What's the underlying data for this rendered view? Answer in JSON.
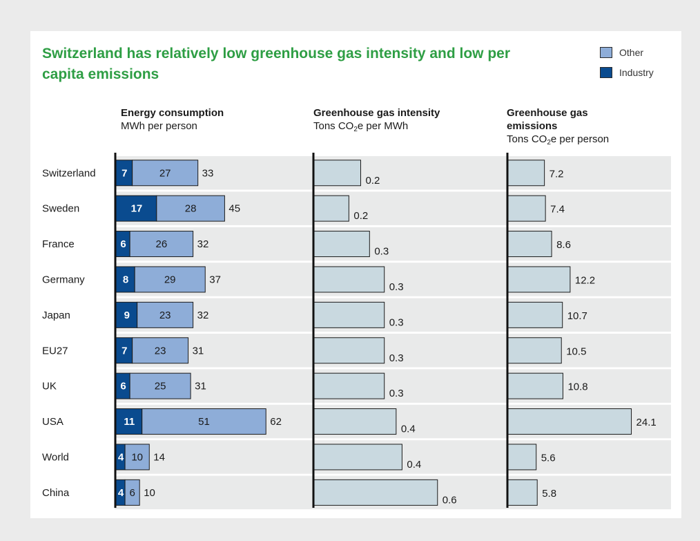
{
  "title": "Switzerland has relatively low greenhouse gas intensity and low per capita emissions",
  "legend": [
    {
      "label": "Other",
      "color": "#8eadd8"
    },
    {
      "label": "Industry",
      "color": "#0a4b8f"
    }
  ],
  "colors": {
    "title": "#2e9e44",
    "industry": "#0a4b8f",
    "other": "#8eadd8",
    "intensity_bar": "#c9d9e0",
    "row_band": "#e9eaea"
  },
  "panels": [
    {
      "title": "Energy consumption",
      "subtitle": "MWh per person"
    },
    {
      "title": "Greenhouse gas intensity",
      "subtitle_pre": "Tons CO",
      "subtitle_sub": "2",
      "subtitle_post": "e per MWh"
    },
    {
      "title_line1": "Greenhouse gas",
      "title_line2": "emissions",
      "subtitle_pre": "Tons CO",
      "subtitle_sub": "2",
      "subtitle_post": "e per person"
    }
  ],
  "chart_data": [
    {
      "type": "bar",
      "stacked": true,
      "orientation": "horizontal",
      "title": "Energy consumption",
      "subtitle": "MWh per person",
      "categories": [
        "Switzerland",
        "Sweden",
        "France",
        "Germany",
        "Japan",
        "EU27",
        "UK",
        "USA",
        "World",
        "China"
      ],
      "series": [
        {
          "name": "Industry",
          "values": [
            7,
            17,
            6,
            8,
            9,
            7,
            6,
            11,
            4,
            4
          ]
        },
        {
          "name": "Other",
          "values": [
            27,
            28,
            26,
            29,
            23,
            23,
            25,
            51,
            10,
            6
          ]
        }
      ],
      "totals": [
        33,
        45,
        32,
        37,
        32,
        31,
        31,
        62,
        14,
        10
      ]
    },
    {
      "type": "bar",
      "orientation": "horizontal",
      "title": "Greenhouse gas intensity",
      "subtitle": "Tons CO2e per MWh",
      "categories": [
        "Switzerland",
        "Sweden",
        "France",
        "Germany",
        "Japan",
        "EU27",
        "UK",
        "USA",
        "World",
        "China"
      ],
      "values": [
        0.2,
        0.2,
        0.3,
        0.3,
        0.3,
        0.3,
        0.3,
        0.4,
        0.4,
        0.6
      ],
      "value_labels": [
        "0.2",
        "0.2",
        "0.3",
        "0.3",
        "0.3",
        "0.3",
        "0.3",
        "0.4",
        "0.4",
        "0.6"
      ],
      "visual_values": [
        0.16,
        0.12,
        0.19,
        0.24,
        0.24,
        0.24,
        0.24,
        0.28,
        0.3,
        0.42
      ]
    },
    {
      "type": "bar",
      "orientation": "horizontal",
      "title": "Greenhouse gas emissions",
      "subtitle": "Tons CO2e per person",
      "categories": [
        "Switzerland",
        "Sweden",
        "France",
        "Germany",
        "Japan",
        "EU27",
        "UK",
        "USA",
        "World",
        "China"
      ],
      "values": [
        7.2,
        7.4,
        8.6,
        12.2,
        10.7,
        10.5,
        10.8,
        24.1,
        5.6,
        5.8
      ],
      "value_labels": [
        "7.2",
        "7.4",
        "8.6",
        "12.2",
        "10.7",
        "10.5",
        "10.8",
        "24.1",
        "5.6",
        "5.8"
      ]
    }
  ]
}
